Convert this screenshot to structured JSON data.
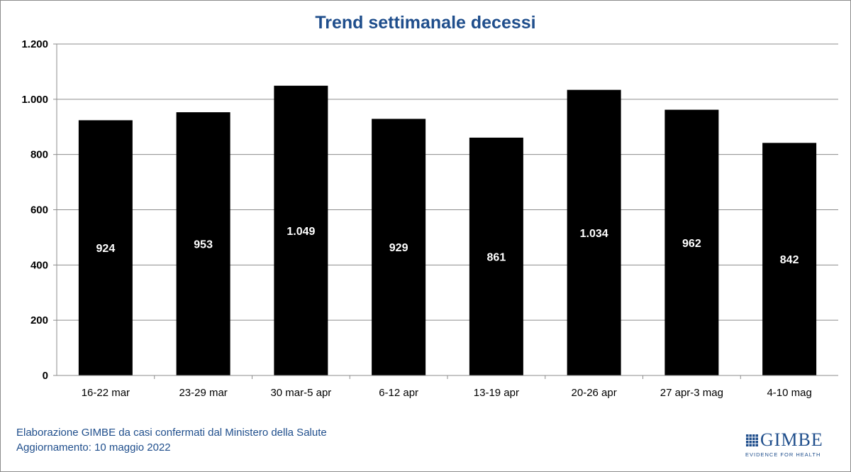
{
  "chart_data": {
    "type": "bar",
    "title": "Trend settimanale decessi",
    "categories": [
      "16-22 mar",
      "23-29 mar",
      "30 mar-5 apr",
      "6-12 apr",
      "13-19 apr",
      "20-26 apr",
      "27 apr-3 mag",
      "4-10 mag"
    ],
    "values": [
      924,
      953,
      1049,
      929,
      861,
      1034,
      962,
      842
    ],
    "value_labels": [
      "924",
      "953",
      "1.049",
      "929",
      "861",
      "1.034",
      "962",
      "842"
    ],
    "ylim": [
      0,
      1200
    ],
    "yticks": [
      0,
      200,
      400,
      600,
      800,
      1000,
      1200
    ],
    "ytick_labels": [
      "0",
      "200",
      "400",
      "600",
      "800",
      "1.000",
      "1.200"
    ],
    "xlabel": "",
    "ylabel": "",
    "grid": true,
    "legend": "none",
    "bar_color": "#000000",
    "title_color": "#1f4e8c"
  },
  "footer": {
    "line1": "Elaborazione GIMBE da casi confermati dal Ministero della Salute",
    "line2": "Aggiornamento: 10 maggio 2022"
  },
  "logo": {
    "word": "GIMBE",
    "tagline": "EVIDENCE FOR HEALTH",
    "color": "#1f4e8c"
  }
}
